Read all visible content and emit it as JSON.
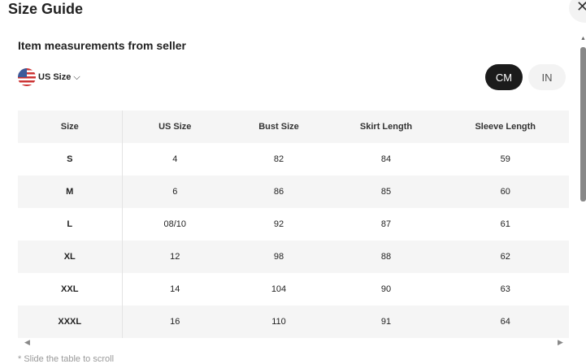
{
  "title": "Size Guide",
  "subtitle": "Item measurements from seller",
  "size_selector": {
    "label": "US Size",
    "icon": "us-flag-icon"
  },
  "units": {
    "cm": "CM",
    "in": "IN",
    "selected": "CM"
  },
  "table": {
    "headers": [
      "Size",
      "US Size",
      "Bust Size",
      "Skirt Length",
      "Sleeve Length"
    ],
    "rows": [
      [
        "S",
        "4",
        "82",
        "84",
        "59"
      ],
      [
        "M",
        "6",
        "86",
        "85",
        "60"
      ],
      [
        "L",
        "08/10",
        "92",
        "87",
        "61"
      ],
      [
        "XL",
        "12",
        "98",
        "88",
        "62"
      ],
      [
        "XXL",
        "14",
        "104",
        "90",
        "63"
      ],
      [
        "XXXL",
        "16",
        "110",
        "91",
        "64"
      ]
    ]
  },
  "note": "* Slide the table to scroll"
}
